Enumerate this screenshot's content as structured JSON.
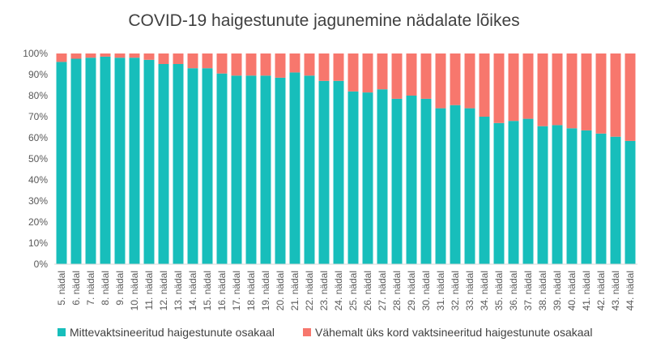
{
  "chart_data": {
    "type": "bar",
    "stacked": true,
    "title": "COVID-19 haigestunute jagunemine nädalate lõikes",
    "categories": [
      "5. nädal",
      "6. nädal",
      "7. nädal",
      "8. nädal",
      "9. nädal",
      "10. nädal",
      "11. nädal",
      "12. nädal",
      "13. nädal",
      "14. nädal",
      "15. nädal",
      "16. nädal",
      "17. nädal",
      "18. nädal",
      "19. nädal",
      "20. nädal",
      "21. nädal",
      "22. nädal",
      "23. nädal",
      "24. nädal",
      "25. nädal",
      "26. nädal",
      "27. nädal",
      "28. nädal",
      "29. nädal",
      "30. nädal",
      "31. nädal",
      "32. nädal",
      "33. nädal",
      "34. nädal",
      "35. nädal",
      "36. nädal",
      "37. nädal",
      "38. nädal",
      "39. nädal",
      "40. nädal",
      "41. nädal",
      "42. nädal",
      "43. nädal",
      "44. nädal"
    ],
    "series": [
      {
        "name": "Mittevaktsineeritud haigestunute osakaal",
        "color": "#17BEBB",
        "values": [
          96,
          97.5,
          98,
          98.5,
          98,
          98,
          97,
          95,
          95,
          93,
          93,
          90.5,
          89.5,
          89.5,
          89.5,
          88.5,
          91,
          89.5,
          87,
          87,
          82,
          81.5,
          83,
          78.5,
          80,
          78.5,
          74,
          75.5,
          74,
          70,
          67,
          68,
          69,
          65.5,
          66,
          64.5,
          63.5,
          62,
          60.5,
          58.5
        ]
      },
      {
        "name": "Vähemalt üks kord vaktsineeritud haigestunute osakaal",
        "color": "#F7776D",
        "values": [
          4,
          2.5,
          2,
          1.5,
          2,
          2,
          3,
          5,
          5,
          7,
          7,
          9.5,
          10.5,
          10.5,
          10.5,
          11.5,
          9,
          10.5,
          13,
          13,
          18,
          18.5,
          17,
          21.5,
          20,
          21.5,
          26,
          24.5,
          26,
          30,
          33,
          32,
          31,
          34.5,
          34,
          35.5,
          36.5,
          38,
          39.5,
          41.5
        ]
      }
    ],
    "y_ticks": [
      "0%",
      "10%",
      "20%",
      "30%",
      "40%",
      "50%",
      "60%",
      "70%",
      "80%",
      "90%",
      "100%"
    ],
    "ylim": [
      0,
      100
    ],
    "grid": false,
    "legend_position": "bottom"
  }
}
